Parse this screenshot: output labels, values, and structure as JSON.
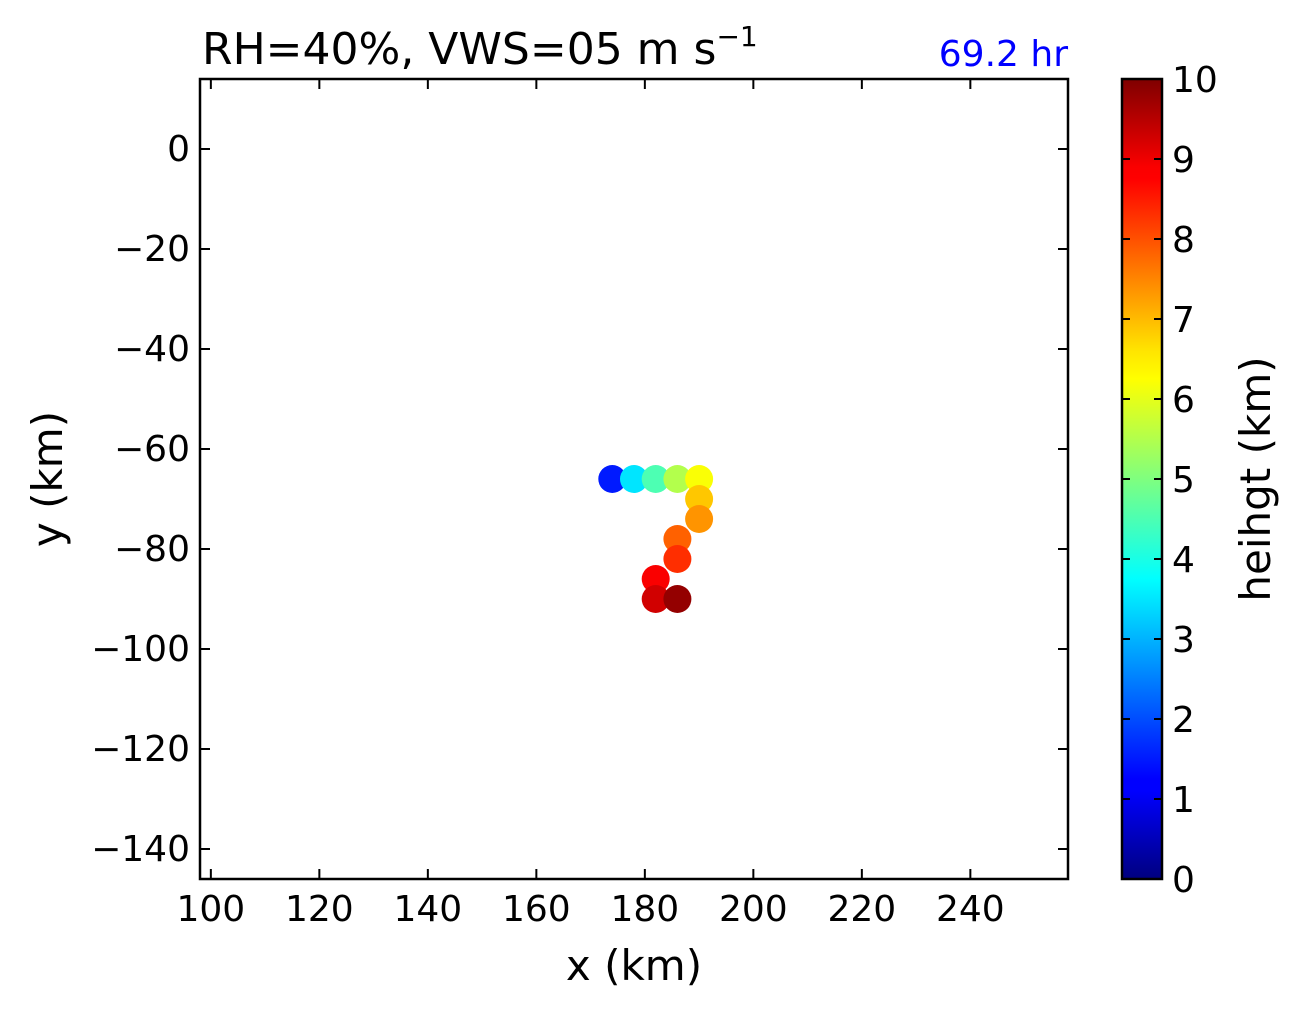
{
  "chart_data": {
    "type": "scatter",
    "title": "RH=40%, VWS=05 m s",
    "title_exponent": "−1",
    "time_label": "69.2 hr",
    "time_label_color": "#0000ff",
    "xlabel": "x (km)",
    "ylabel": "y (km)",
    "xlim": [
      98,
      258
    ],
    "ylim": [
      -146,
      14
    ],
    "xticks": [
      100,
      120,
      140,
      160,
      180,
      200,
      220,
      240
    ],
    "yticks": [
      0,
      -20,
      -40,
      -60,
      -80,
      -100,
      -120,
      -140
    ],
    "xtick_labels": [
      "100",
      "120",
      "140",
      "160",
      "180",
      "200",
      "220",
      "240"
    ],
    "ytick_labels": [
      "0",
      "−20",
      "−40",
      "−60",
      "−80",
      "−100",
      "−120",
      "−140"
    ],
    "grid": false,
    "colormap": "jet",
    "colorbar": {
      "label": "heihgt (km)",
      "range": [
        0,
        10
      ],
      "ticks": [
        0,
        1,
        2,
        3,
        4,
        5,
        6,
        7,
        8,
        9,
        10
      ],
      "tick_labels": [
        "0",
        "1",
        "2",
        "3",
        "4",
        "5",
        "6",
        "7",
        "8",
        "9",
        "10"
      ]
    },
    "points": [
      {
        "x": 174,
        "y": -66,
        "height": 1.5
      },
      {
        "x": 178,
        "y": -66,
        "height": 3.5
      },
      {
        "x": 182,
        "y": -66,
        "height": 4.5
      },
      {
        "x": 186,
        "y": -66,
        "height": 5.5
      },
      {
        "x": 190,
        "y": -66,
        "height": 6.2
      },
      {
        "x": 190,
        "y": -70,
        "height": 6.8
      },
      {
        "x": 190,
        "y": -74,
        "height": 7.3
      },
      {
        "x": 186,
        "y": -78,
        "height": 7.8
      },
      {
        "x": 186,
        "y": -82,
        "height": 8.3
      },
      {
        "x": 182,
        "y": -86,
        "height": 8.8
      },
      {
        "x": 182,
        "y": -90,
        "height": 9.2
      },
      {
        "x": 186,
        "y": -90,
        "height": 9.8
      }
    ]
  }
}
